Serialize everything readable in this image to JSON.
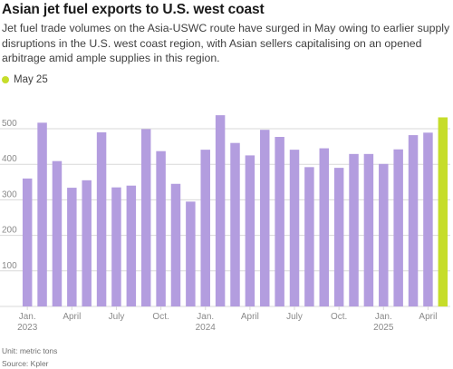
{
  "title": "Asian jet fuel exports to U.S. west coast",
  "subtitle": "Jet fuel trade volumes on the Asia-USWC route have surged in May owing to earlier supply disruptions in the U.S. west coast region, with Asian sellers capitalising on an opened arbitrage amid ample supplies in this region.",
  "legend": {
    "label": "May 25"
  },
  "footer": {
    "unit": "Unit: metric tons",
    "source": "Source: Kpler"
  },
  "colors": {
    "bar": "#b39ddf",
    "highlight": "#c6dd2a",
    "grid": "#d9d9d9"
  },
  "chart_data": {
    "type": "bar",
    "title": "Asian jet fuel exports to U.S. west coast",
    "ylabel": "",
    "xlabel": "",
    "ylim": [
      0,
      560
    ],
    "yticks": [
      100,
      200,
      300,
      400,
      500
    ],
    "grid": true,
    "legend_position": "top-left",
    "categories": [
      "Jan 2023",
      "Feb 2023",
      "Mar 2023",
      "Apr 2023",
      "May 2023",
      "Jun 2023",
      "Jul 2023",
      "Aug 2023",
      "Sep 2023",
      "Oct 2023",
      "Nov 2023",
      "Dec 2023",
      "Jan 2024",
      "Feb 2024",
      "Mar 2024",
      "Apr 2024",
      "May 2024",
      "Jun 2024",
      "Jul 2024",
      "Aug 2024",
      "Sep 2024",
      "Oct 2024",
      "Nov 2024",
      "Dec 2024",
      "Jan 2025",
      "Feb 2025",
      "Mar 2025",
      "Apr 2025",
      "May 2025"
    ],
    "values": [
      360,
      517,
      409,
      334,
      355,
      490,
      335,
      340,
      499,
      437,
      345,
      295,
      441,
      538,
      460,
      425,
      497,
      477,
      441,
      392,
      445,
      390,
      429,
      429,
      401,
      442,
      482,
      489,
      532
    ],
    "highlight_index": 28,
    "x_tick_labels": [
      {
        "index": 0,
        "line1": "Jan.",
        "line2": "2023"
      },
      {
        "index": 3,
        "line1": "April",
        "line2": ""
      },
      {
        "index": 6,
        "line1": "July",
        "line2": ""
      },
      {
        "index": 9,
        "line1": "Oct.",
        "line2": ""
      },
      {
        "index": 12,
        "line1": "Jan.",
        "line2": "2024"
      },
      {
        "index": 15,
        "line1": "April",
        "line2": ""
      },
      {
        "index": 18,
        "line1": "July",
        "line2": ""
      },
      {
        "index": 21,
        "line1": "Oct.",
        "line2": ""
      },
      {
        "index": 24,
        "line1": "Jan.",
        "line2": "2025"
      },
      {
        "index": 27,
        "line1": "April",
        "line2": ""
      }
    ]
  }
}
